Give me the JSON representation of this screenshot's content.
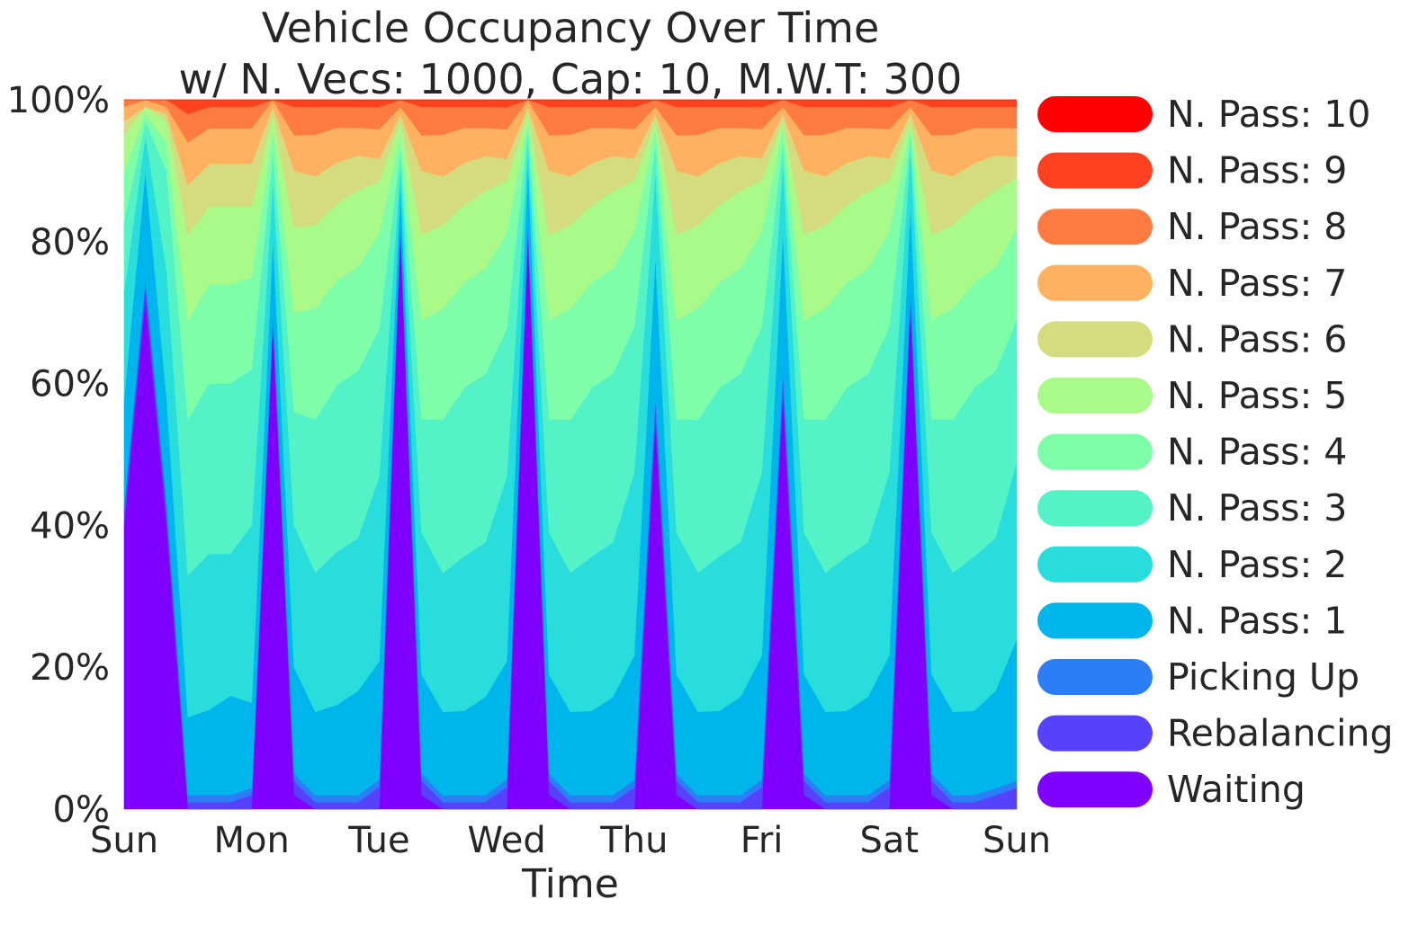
{
  "chart_data": {
    "type": "area",
    "stacked": "percent",
    "title": "Vehicle Occupancy Over Time",
    "subtitle": "w/ N. Vecs: 1000, Cap: 10, M.W.T: 300",
    "xlabel": "Time",
    "ylabel": "",
    "x_ticks": [
      "Sun",
      "Mon",
      "Tue",
      "Wed",
      "Thu",
      "Fri",
      "Sat",
      "Sun"
    ],
    "y_ticks": [
      "0%",
      "20%",
      "40%",
      "60%",
      "80%",
      "100%"
    ],
    "ylim": [
      0,
      100
    ],
    "grid": false,
    "legend_position": "right",
    "x": [
      "Sun 00:00",
      "Sun 03:00",
      "Sun 06:00",
      "Sun 09:00",
      "Sun 12:00",
      "Sun 18:00",
      "Mon 00:00",
      "Mon 03:00",
      "Mon 06:00",
      "Mon 09:00",
      "Mon 12:00",
      "Mon 18:00",
      "Tue 00:00",
      "Tue 03:00",
      "Tue 06:00",
      "Tue 09:00",
      "Tue 12:00",
      "Tue 18:00",
      "Wed 00:00",
      "Wed 03:00",
      "Wed 06:00",
      "Wed 09:00",
      "Wed 12:00",
      "Wed 18:00",
      "Thu 00:00",
      "Thu 03:00",
      "Thu 06:00",
      "Thu 09:00",
      "Thu 12:00",
      "Thu 18:00",
      "Fri 00:00",
      "Fri 03:00",
      "Fri 06:00",
      "Fri 09:00",
      "Fri 12:00",
      "Fri 18:00",
      "Sat 00:00",
      "Sat 03:00",
      "Sat 06:00",
      "Sat 09:00",
      "Sat 12:00",
      "Sat 18:00",
      "Sun 00:00"
    ],
    "series": [
      {
        "name": "Waiting",
        "color": "#7f00ff",
        "values": [
          40,
          72,
          40,
          0,
          0,
          0,
          0,
          67,
          2,
          0,
          0,
          0,
          0,
          82,
          2,
          0,
          0,
          0,
          0,
          82,
          2,
          0,
          0,
          0,
          0,
          55,
          2,
          0,
          0,
          0,
          0,
          60,
          2,
          0,
          0,
          0,
          0,
          72,
          2,
          0,
          0,
          0,
          0
        ]
      },
      {
        "name": "Rebalancing",
        "color": "#5641fd",
        "values": [
          2,
          2,
          2,
          1,
          1,
          1,
          2,
          1,
          2,
          1,
          1,
          1,
          3,
          1,
          2,
          1,
          1,
          1,
          3,
          1,
          2,
          1,
          1,
          1,
          3,
          3,
          2,
          1,
          1,
          1,
          3,
          3,
          2,
          1,
          1,
          1,
          3,
          2,
          2,
          1,
          1,
          2,
          3
        ]
      },
      {
        "name": "Picking Up",
        "color": "#2c7ef7",
        "values": [
          1,
          1,
          1,
          1,
          1,
          1,
          1,
          1,
          1,
          1,
          1,
          1,
          1,
          1,
          1,
          1,
          1,
          1,
          1,
          1,
          1,
          1,
          1,
          1,
          1,
          1,
          1,
          1,
          1,
          1,
          1,
          1,
          1,
          1,
          1,
          1,
          1,
          1,
          1,
          1,
          1,
          1,
          1
        ]
      },
      {
        "name": "N. Pass: 1",
        "color": "#00b5eb",
        "values": [
          15,
          15,
          15,
          11,
          12,
          14,
          12,
          10,
          15,
          12,
          13,
          15,
          16,
          5,
          14,
          12,
          12,
          14,
          16,
          8,
          14,
          12,
          12,
          14,
          17,
          20,
          14,
          12,
          12,
          14,
          17,
          20,
          14,
          12,
          12,
          14,
          17,
          12,
          14,
          12,
          12,
          14,
          20
        ]
      },
      {
        "name": "N. Pass: 2",
        "color": "#2adddd",
        "values": [
          15,
          5,
          18,
          20,
          22,
          20,
          25,
          8,
          20,
          20,
          22,
          22,
          25,
          3,
          20,
          20,
          22,
          22,
          25,
          3,
          20,
          20,
          22,
          22,
          25,
          12,
          20,
          20,
          22,
          22,
          25,
          10,
          20,
          20,
          22,
          22,
          25,
          8,
          20,
          20,
          22,
          22,
          25
        ]
      },
      {
        "name": "N. Pass: 3",
        "color": "#54f3c7",
        "values": [
          10,
          2,
          14,
          22,
          24,
          24,
          22,
          4,
          16,
          22,
          24,
          24,
          20,
          2,
          16,
          22,
          24,
          24,
          20,
          2,
          16,
          22,
          24,
          24,
          20,
          4,
          16,
          22,
          24,
          24,
          20,
          3,
          16,
          22,
          24,
          24,
          20,
          2,
          16,
          22,
          24,
          24,
          20
        ]
      },
      {
        "name": "N. Pass: 4",
        "color": "#7efea9",
        "values": [
          7,
          1,
          4,
          14,
          14,
          14,
          13,
          3,
          14,
          16,
          15,
          15,
          13,
          2,
          14,
          16,
          15,
          15,
          13,
          1,
          14,
          16,
          15,
          15,
          13,
          2,
          14,
          16,
          15,
          15,
          13,
          2,
          14,
          16,
          15,
          15,
          13,
          1,
          14,
          16,
          15,
          15,
          13
        ]
      },
      {
        "name": "N. Pass: 5",
        "color": "#aafa8a",
        "values": [
          5,
          1,
          3,
          12,
          11,
          11,
          10,
          2,
          12,
          12,
          11,
          11,
          7,
          2,
          12,
          12,
          11,
          11,
          7,
          1,
          12,
          12,
          11,
          11,
          7,
          1,
          12,
          12,
          11,
          11,
          7,
          1,
          12,
          12,
          11,
          11,
          7,
          1,
          12,
          12,
          11,
          11,
          7
        ]
      },
      {
        "name": "N. Pass: 6",
        "color": "#d4dc7f",
        "values": [
          2,
          0,
          1,
          7,
          6,
          6,
          6,
          1,
          8,
          7,
          6,
          5,
          3,
          1,
          9,
          7,
          6,
          5,
          3,
          1,
          9,
          7,
          6,
          5,
          3,
          1,
          9,
          7,
          6,
          5,
          3,
          1,
          9,
          7,
          6,
          5,
          3,
          1,
          9,
          7,
          6,
          5,
          3
        ]
      },
      {
        "name": "N. Pass: 7",
        "color": "#ffb160",
        "values": [
          2,
          1,
          1,
          6,
          5,
          5,
          5,
          1,
          5,
          6,
          5,
          4,
          4,
          1,
          5,
          6,
          5,
          4,
          4,
          1,
          5,
          6,
          5,
          4,
          4,
          1,
          5,
          6,
          5,
          4,
          4,
          1,
          5,
          6,
          5,
          4,
          4,
          1,
          5,
          6,
          5,
          4,
          4
        ]
      },
      {
        "name": "N. Pass: 8",
        "color": "#ff7b41",
        "values": [
          1,
          0,
          1,
          4,
          3,
          3,
          3,
          0,
          4,
          4,
          3,
          3,
          3,
          1,
          4,
          4,
          3,
          3,
          3,
          0,
          4,
          4,
          3,
          3,
          3,
          1,
          4,
          4,
          3,
          3,
          3,
          1,
          4,
          4,
          3,
          3,
          3,
          1,
          4,
          4,
          3,
          3,
          3
        ]
      },
      {
        "name": "N. Pass: 9",
        "color": "#ff4121",
        "values": [
          0,
          0,
          0,
          2,
          1,
          1,
          1,
          0,
          1,
          1,
          1,
          1,
          1,
          0,
          1,
          1,
          1,
          1,
          1,
          0,
          1,
          1,
          1,
          1,
          1,
          0,
          1,
          1,
          1,
          1,
          1,
          0,
          1,
          1,
          1,
          1,
          1,
          0,
          1,
          1,
          1,
          1,
          1
        ]
      },
      {
        "name": "N. Pass: 10",
        "color": "#ff0000",
        "values": [
          0,
          0,
          0,
          0,
          0,
          0,
          0,
          0,
          0,
          0,
          0,
          0,
          0,
          0,
          0,
          0,
          0,
          0,
          0,
          0,
          0,
          0,
          0,
          0,
          0,
          0,
          0,
          0,
          0,
          0,
          0,
          0,
          0,
          0,
          0,
          0,
          0,
          0,
          0,
          0,
          0,
          0,
          0
        ]
      }
    ]
  }
}
